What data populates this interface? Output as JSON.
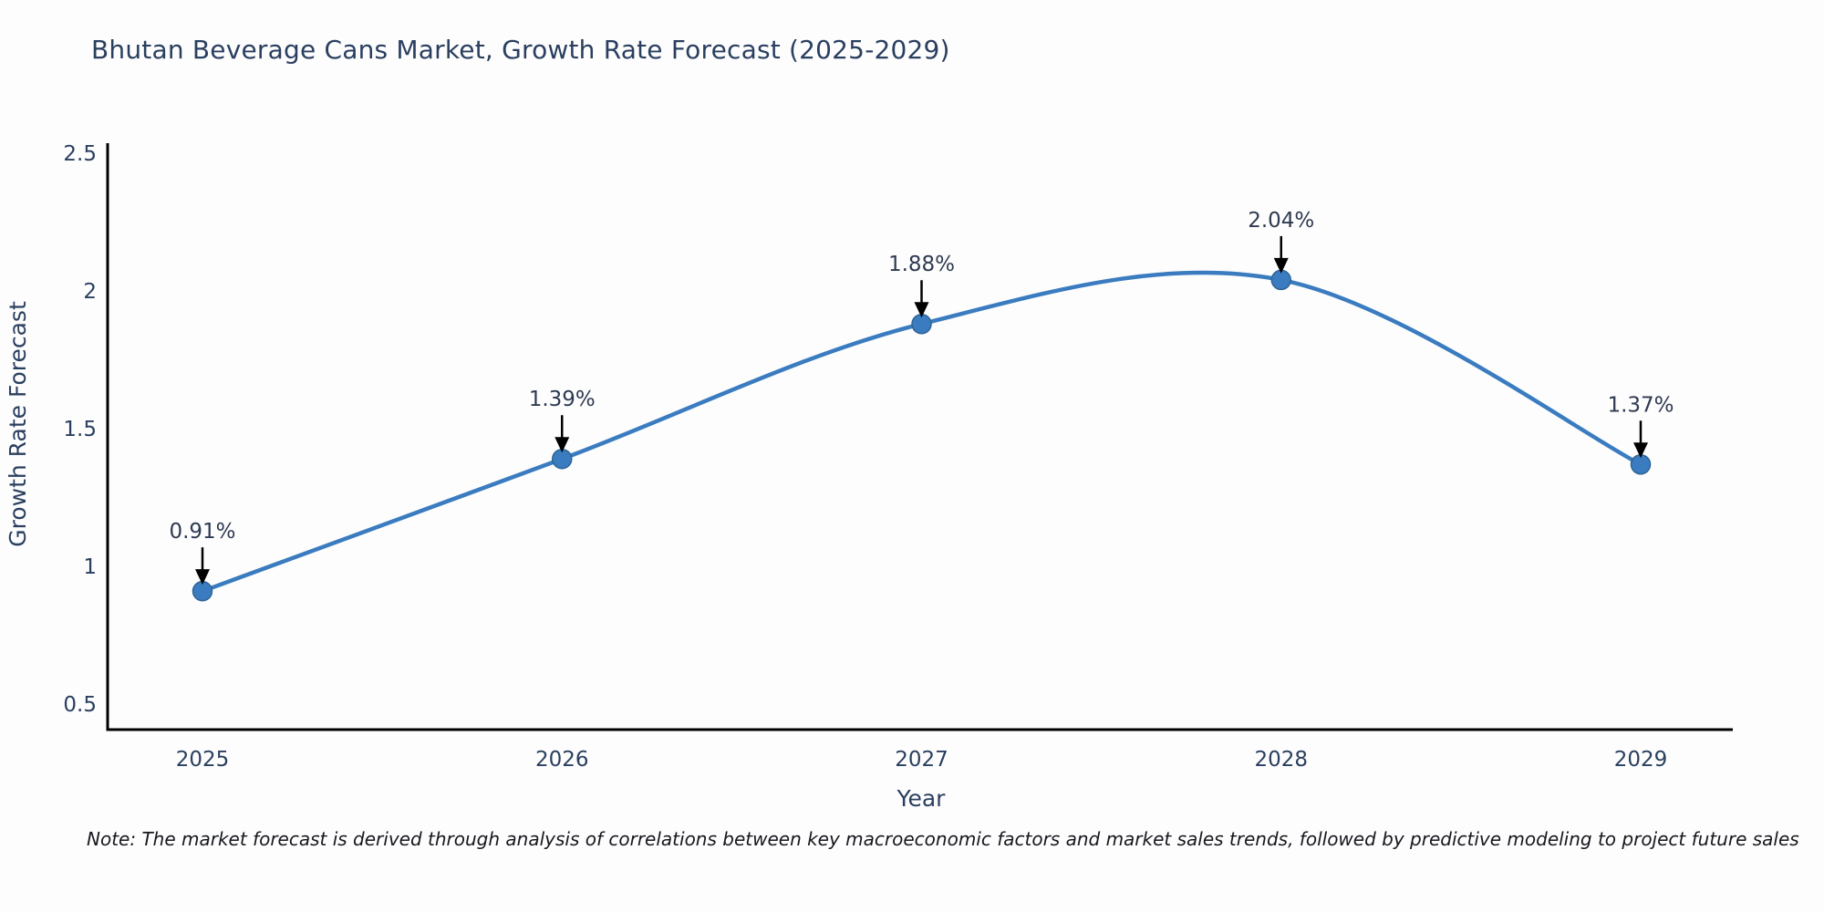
{
  "page": {
    "note": "Note: The market forecast is derived through analysis of correlations between key macroeconomic factors and market sales trends, followed by predictive modeling to project future sales"
  },
  "chart_data": {
    "type": "line",
    "title": "Bhutan Beverage Cans Market, Growth Rate Forecast (2025-2029)",
    "xlabel": "Year",
    "ylabel": "Growth Rate Forecast",
    "x": [
      2025,
      2026,
      2027,
      2028,
      2029
    ],
    "series": [
      {
        "name": "Growth Rate Forecast",
        "values": [
          0.91,
          1.39,
          1.88,
          2.04,
          1.37
        ]
      }
    ],
    "point_labels": [
      "0.91%",
      "1.39%",
      "1.88%",
      "2.04%",
      "1.37%"
    ],
    "xticks": [
      "2025",
      "2026",
      "2027",
      "2028",
      "2029"
    ],
    "yticks": [
      0.5,
      1,
      1.5,
      2,
      2.5
    ],
    "ytick_labels": [
      "0.5",
      "1",
      "1.5",
      "2",
      "2.5"
    ],
    "ylim": [
      0.5,
      2.5
    ],
    "grid": false,
    "legend": "none",
    "line_shape": "spline",
    "annotation_style": "value-label-with-down-arrow",
    "colors": {
      "line": "#3a7cbf",
      "marker_fill": "#3a7cbf",
      "marker_edge": "#2e6496",
      "axis_spine": "#000000",
      "tick_text": "#2a3f5f",
      "axis_label_text": "#2a3f5f",
      "annotation_text": "#2e3a50",
      "arrow": "#000000"
    }
  }
}
